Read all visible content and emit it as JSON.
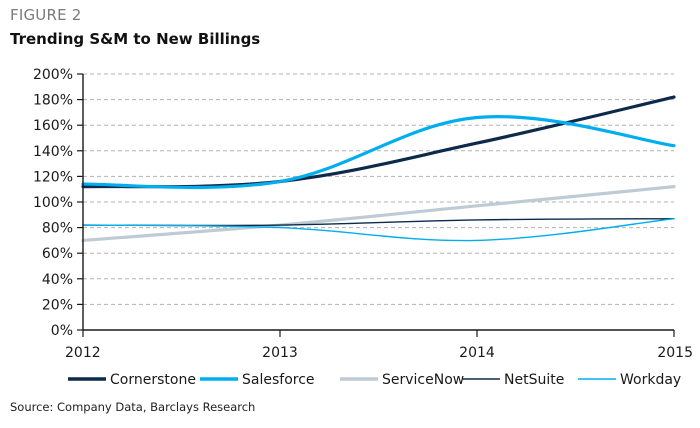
{
  "figure": {
    "label": "FIGURE 2",
    "title": "Trending S&M to New Billings",
    "source": "Source: Company Data, Barclays Research"
  },
  "chart_data": {
    "type": "line",
    "title": "Trending S&M to New Billings",
    "xlabel": "",
    "ylabel": "",
    "x": [
      2012,
      2013,
      2014,
      2015
    ],
    "x_tick_labels": [
      "2012",
      "2013",
      "2014",
      "2015"
    ],
    "xlim": [
      2012,
      2015
    ],
    "ylim": [
      0,
      200
    ],
    "y_ticks": [
      0,
      20,
      40,
      60,
      80,
      100,
      120,
      140,
      160,
      180,
      200
    ],
    "y_tick_labels": [
      "0%",
      "20%",
      "40%",
      "60%",
      "80%",
      "100%",
      "120%",
      "140%",
      "160%",
      "180%",
      "200%"
    ],
    "grid": "horizontal-dashed",
    "legend_position": "bottom",
    "series": [
      {
        "name": "Cornerstone",
        "color": "#0d2a4a",
        "weight": "thick",
        "values": [
          112,
          116,
          146,
          182
        ]
      },
      {
        "name": "Salesforce",
        "color": "#00aeef",
        "weight": "thick",
        "values": [
          114,
          116,
          166,
          144
        ]
      },
      {
        "name": "ServiceNow",
        "color": "#bfcbd4",
        "weight": "thick",
        "values": [
          70,
          82,
          97,
          112
        ]
      },
      {
        "name": "NetSuite",
        "color": "#0d2a4a",
        "weight": "thin",
        "values": [
          82,
          82,
          86,
          87
        ]
      },
      {
        "name": "Workday",
        "color": "#00aeef",
        "weight": "thin",
        "values": [
          82,
          80,
          70,
          87
        ]
      }
    ]
  }
}
